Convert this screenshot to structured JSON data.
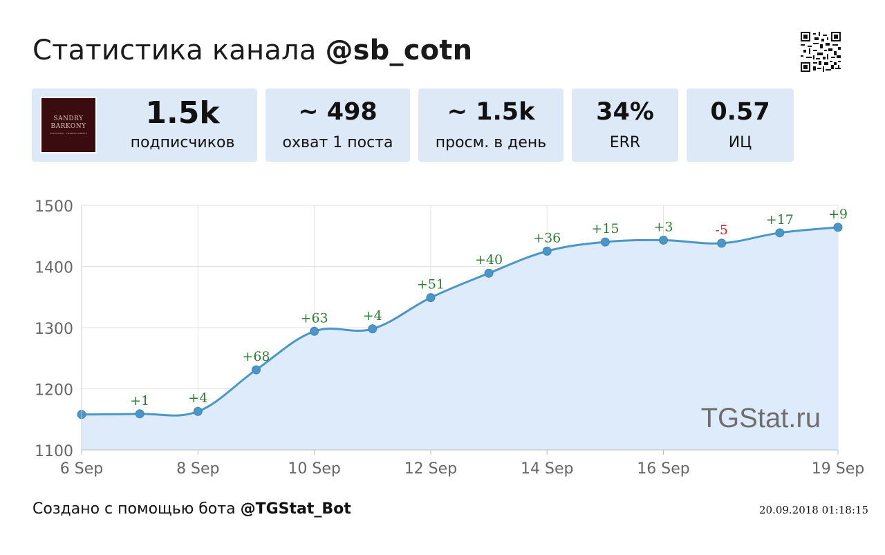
{
  "header": {
    "title_prefix": "Статистика канала ",
    "channel": "@sb_cotn"
  },
  "qr_icon": "qr-code-icon",
  "avatar": {
    "line1": "SANDRY",
    "line2": "BARKONY",
    "line3": "INVESTING · TRADING GROUP",
    "bg_color": "#3a0c0f"
  },
  "stats": [
    {
      "value": "1.5k",
      "label": "подписчиков"
    },
    {
      "value": "~ 498",
      "label": "охват 1 поста"
    },
    {
      "value": "~ 1.5k",
      "label": "просм. в день"
    },
    {
      "value": "34%",
      "label": "ERR"
    },
    {
      "value": "0.57",
      "label": "ИЦ"
    }
  ],
  "chart_data": {
    "type": "area",
    "x": [
      "2018-09-06",
      "2018-09-07",
      "2018-09-08",
      "2018-09-09",
      "2018-09-10",
      "2018-09-11",
      "2018-09-12",
      "2018-09-13",
      "2018-09-14",
      "2018-09-15",
      "2018-09-16",
      "2018-09-17",
      "2018-09-18",
      "2018-09-19"
    ],
    "values": [
      1158,
      1159,
      1163,
      1231,
      1294,
      1298,
      1349,
      1389,
      1425,
      1440,
      1443,
      1438,
      1455,
      1464
    ],
    "data_labels": [
      "",
      "+1",
      "+4",
      "+68",
      "+63",
      "+4",
      "+51",
      "+40",
      "+36",
      "+15",
      "+3",
      "-5",
      "+17",
      "+9"
    ],
    "xtick_labels": [
      "6 Sep",
      "8 Sep",
      "10 Sep",
      "12 Sep",
      "14 Sep",
      "16 Sep",
      "19 Sep"
    ],
    "xtick_index": [
      0,
      2,
      4,
      6,
      8,
      10,
      13
    ],
    "yticks": [
      1100,
      1200,
      1300,
      1400,
      1500
    ],
    "ylim": [
      1100,
      1500
    ],
    "grid": true,
    "watermark": "TGStat.ru",
    "colors": {
      "line": "#4a96c6",
      "fill": "#deebfa",
      "positive": "#2e7d32",
      "negative": "#c62828"
    }
  },
  "footer": {
    "prefix": "Создано с помощью бота ",
    "bot": "@TGStat_Bot",
    "timestamp": "20.09.2018 01:18:15"
  }
}
